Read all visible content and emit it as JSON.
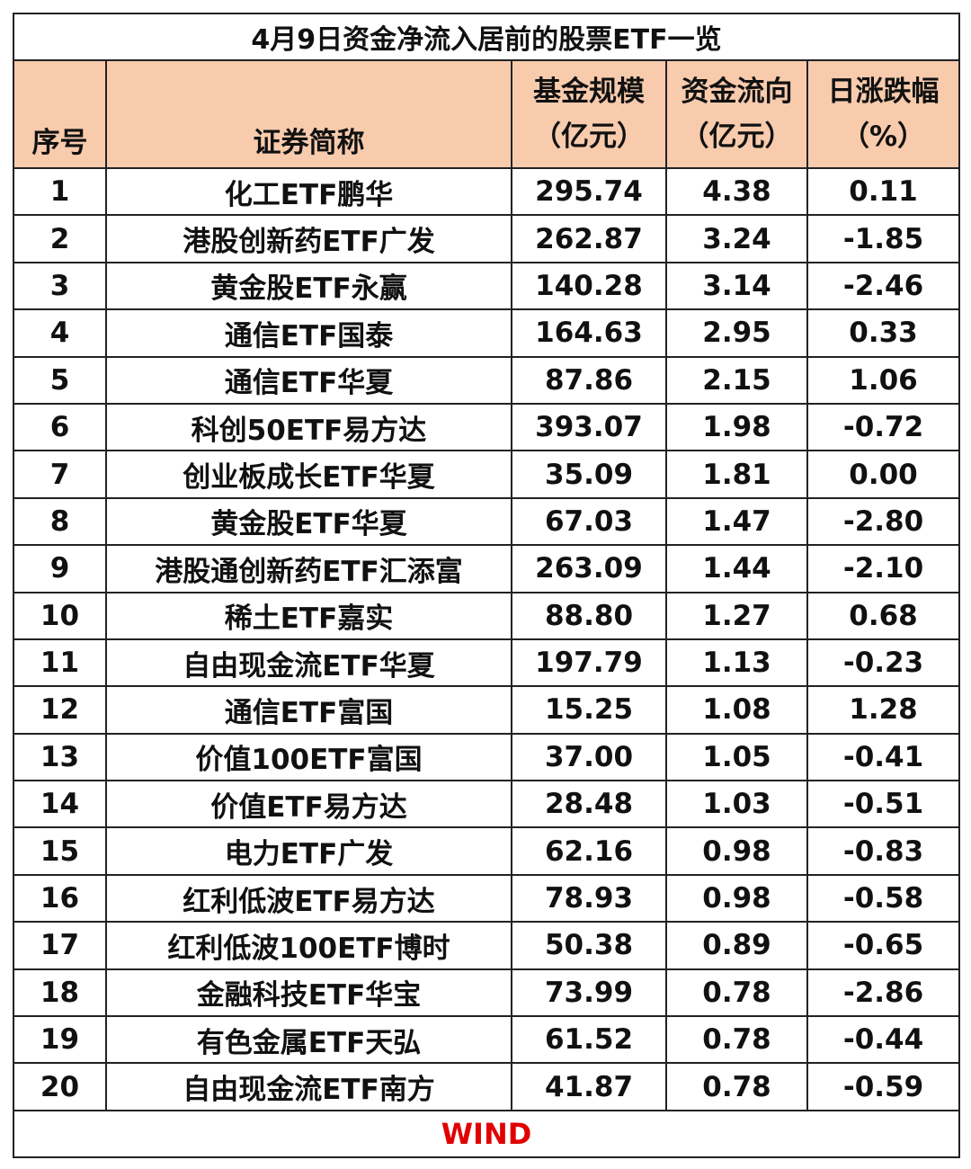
{
  "title": "4月9日资金净流入居前的股票ETF一览",
  "colors": {
    "header_bg": "#f8cbad",
    "footer_text": "#e00000"
  },
  "headers": {
    "index": "序号",
    "name": "证券简称",
    "size_line1": "基金规模",
    "size_line2": "（亿元）",
    "flow_line1": "资金流向",
    "flow_line2": "（亿元）",
    "change_line1": "日涨跌幅",
    "change_line2": "（%）"
  },
  "rows": [
    {
      "index": "1",
      "name": "化工ETF鹏华",
      "size": "295.74",
      "flow": "4.38",
      "change": "0.11"
    },
    {
      "index": "2",
      "name": "港股创新药ETF广发",
      "size": "262.87",
      "flow": "3.24",
      "change": "-1.85"
    },
    {
      "index": "3",
      "name": "黄金股ETF永赢",
      "size": "140.28",
      "flow": "3.14",
      "change": "-2.46"
    },
    {
      "index": "4",
      "name": "通信ETF国泰",
      "size": "164.63",
      "flow": "2.95",
      "change": "0.33"
    },
    {
      "index": "5",
      "name": "通信ETF华夏",
      "size": "87.86",
      "flow": "2.15",
      "change": "1.06"
    },
    {
      "index": "6",
      "name": "科创50ETF易方达",
      "size": "393.07",
      "flow": "1.98",
      "change": "-0.72"
    },
    {
      "index": "7",
      "name": "创业板成长ETF华夏",
      "size": "35.09",
      "flow": "1.81",
      "change": "0.00"
    },
    {
      "index": "8",
      "name": "黄金股ETF华夏",
      "size": "67.03",
      "flow": "1.47",
      "change": "-2.80"
    },
    {
      "index": "9",
      "name": "港股通创新药ETF汇添富",
      "size": "263.09",
      "flow": "1.44",
      "change": "-2.10"
    },
    {
      "index": "10",
      "name": "稀土ETF嘉实",
      "size": "88.80",
      "flow": "1.27",
      "change": "0.68"
    },
    {
      "index": "11",
      "name": "自由现金流ETF华夏",
      "size": "197.79",
      "flow": "1.13",
      "change": "-0.23"
    },
    {
      "index": "12",
      "name": "通信ETF富国",
      "size": "15.25",
      "flow": "1.08",
      "change": "1.28"
    },
    {
      "index": "13",
      "name": "价值100ETF富国",
      "size": "37.00",
      "flow": "1.05",
      "change": "-0.41"
    },
    {
      "index": "14",
      "name": "价值ETF易方达",
      "size": "28.48",
      "flow": "1.03",
      "change": "-0.51"
    },
    {
      "index": "15",
      "name": "电力ETF广发",
      "size": "62.16",
      "flow": "0.98",
      "change": "-0.83"
    },
    {
      "index": "16",
      "name": "红利低波ETF易方达",
      "size": "78.93",
      "flow": "0.98",
      "change": "-0.58"
    },
    {
      "index": "17",
      "name": "红利低波100ETF博时",
      "size": "50.38",
      "flow": "0.89",
      "change": "-0.65"
    },
    {
      "index": "18",
      "name": "金融科技ETF华宝",
      "size": "73.99",
      "flow": "0.78",
      "change": "-2.86"
    },
    {
      "index": "19",
      "name": "有色金属ETF天弘",
      "size": "61.52",
      "flow": "0.78",
      "change": "-0.44"
    },
    {
      "index": "20",
      "name": "自由现金流ETF南方",
      "size": "41.87",
      "flow": "0.78",
      "change": "-0.59"
    }
  ],
  "footer": "WIND"
}
